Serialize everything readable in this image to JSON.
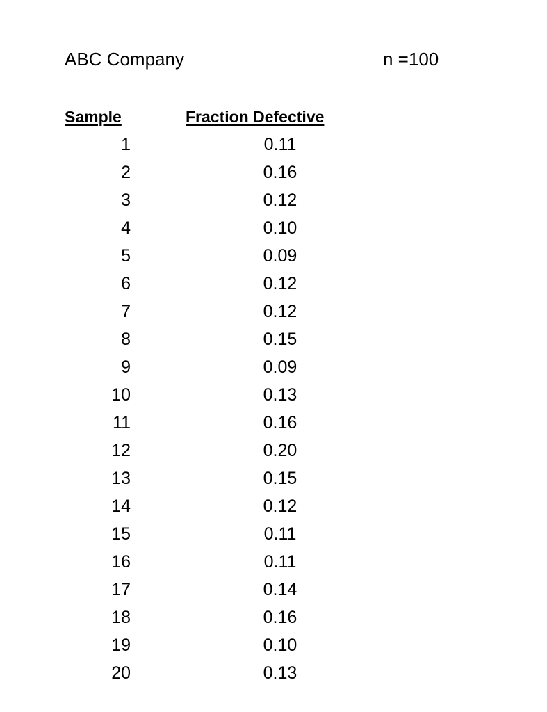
{
  "header": {
    "company": "ABC Company",
    "sample_size": "n =100"
  },
  "table": {
    "columns": [
      "Sample",
      "Fraction Defective"
    ],
    "rows": [
      {
        "sample": "1",
        "fraction": "0.11"
      },
      {
        "sample": "2",
        "fraction": "0.16"
      },
      {
        "sample": "3",
        "fraction": "0.12"
      },
      {
        "sample": "4",
        "fraction": "0.10"
      },
      {
        "sample": "5",
        "fraction": "0.09"
      },
      {
        "sample": "6",
        "fraction": "0.12"
      },
      {
        "sample": "7",
        "fraction": "0.12"
      },
      {
        "sample": "8",
        "fraction": "0.15"
      },
      {
        "sample": "9",
        "fraction": "0.09"
      },
      {
        "sample": "10",
        "fraction": "0.13"
      },
      {
        "sample": "11",
        "fraction": "0.16"
      },
      {
        "sample": "12",
        "fraction": "0.20"
      },
      {
        "sample": "13",
        "fraction": "0.15"
      },
      {
        "sample": "14",
        "fraction": "0.12"
      },
      {
        "sample": "15",
        "fraction": "0.11"
      },
      {
        "sample": "16",
        "fraction": "0.11"
      },
      {
        "sample": "17",
        "fraction": "0.14"
      },
      {
        "sample": "18",
        "fraction": "0.16"
      },
      {
        "sample": "19",
        "fraction": "0.10"
      },
      {
        "sample": "20",
        "fraction": "0.13"
      }
    ]
  }
}
